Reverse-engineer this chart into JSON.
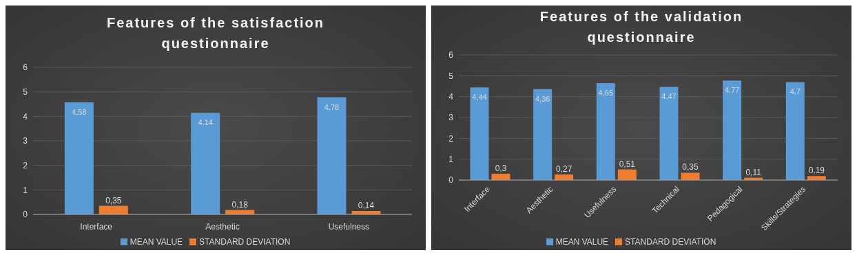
{
  "chart_data": [
    {
      "type": "bar",
      "title": "Features of the satisfaction questionnaire",
      "categories": [
        "Interface",
        "Aesthetic",
        "Usefulness"
      ],
      "series": [
        {
          "name": "MEAN VALUE",
          "color": "#5b9bd5",
          "values": [
            4.58,
            4.14,
            4.78
          ],
          "value_labels": [
            "4,58",
            "4,14",
            "4,78"
          ]
        },
        {
          "name": "STANDARD DEVIATION",
          "color": "#ed7d31",
          "values": [
            0.35,
            0.18,
            0.14
          ],
          "value_labels": [
            "0,35",
            "0,18",
            "0,14"
          ]
        }
      ],
      "ylim": [
        0,
        6
      ],
      "yticks": [
        0,
        1,
        2,
        3,
        4,
        5,
        6
      ],
      "grid": "y",
      "legend": "bottom"
    },
    {
      "type": "bar",
      "title": "Features of the validation questionnaire",
      "categories": [
        "Interface",
        "Aesthetic",
        "Usefulness",
        "Technical",
        "Pedagogical",
        "Skills/Strategies"
      ],
      "series": [
        {
          "name": "MEAN VALUE",
          "color": "#5b9bd5",
          "values": [
            4.44,
            4.36,
            4.65,
            4.47,
            4.77,
            4.7
          ],
          "value_labels": [
            "4,44",
            "4,36",
            "4,65",
            "4,47",
            "4,77",
            "4,7"
          ]
        },
        {
          "name": "STANDARD DEVIATION",
          "color": "#ed7d31",
          "values": [
            0.3,
            0.27,
            0.51,
            0.35,
            0.11,
            0.19
          ],
          "value_labels": [
            "0,3",
            "0,27",
            "0,51",
            "0,35",
            "0,11",
            "0,19"
          ]
        }
      ],
      "ylim": [
        0,
        6
      ],
      "yticks": [
        0,
        1,
        2,
        3,
        4,
        5,
        6
      ],
      "grid": "y",
      "legend": "bottom"
    }
  ]
}
